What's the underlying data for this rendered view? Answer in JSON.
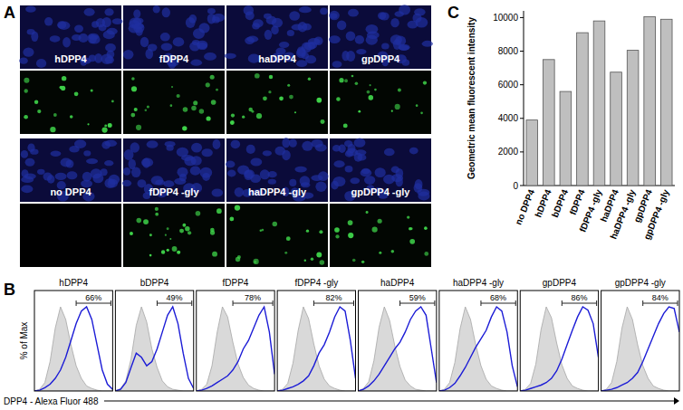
{
  "panel_a": {
    "letter": "A",
    "rows": [
      {
        "labels": [
          "hDPP4",
          "fDPP4",
          "haDPP4",
          "gpDPP4"
        ]
      },
      {
        "labels": [
          "no DPP4",
          "fDPP4 -gly",
          "haDPP4 -gly",
          "gpDPP4 -gly"
        ]
      }
    ]
  },
  "panel_b": {
    "letter": "B",
    "y_label": "% of Max",
    "x_label": "DPP4 - Alexa Fluor 488",
    "x": [
      0,
      1,
      2,
      3,
      4,
      5,
      6,
      7,
      8,
      9,
      10,
      11,
      12,
      13,
      14,
      15
    ],
    "xlim": [
      0,
      15
    ],
    "ylim": [
      0,
      100
    ],
    "histograms": [
      {
        "title": "hDPP4",
        "gate_start": 8,
        "gate_end": 15,
        "gate_percent": 66,
        "gate_label": "66%",
        "control": [
          0,
          2,
          10,
          35,
          75,
          100,
          85,
          55,
          30,
          15,
          6,
          3,
          1,
          0,
          0,
          0
        ],
        "blue": [
          0,
          1,
          4,
          8,
          15,
          25,
          40,
          60,
          80,
          95,
          100,
          85,
          55,
          25,
          8,
          2
        ]
      },
      {
        "title": "bDPP4",
        "gate_start": 8,
        "gate_end": 15,
        "gate_percent": 49,
        "gate_label": "49%",
        "control": [
          0,
          3,
          12,
          38,
          78,
          100,
          82,
          50,
          28,
          12,
          5,
          2,
          1,
          0,
          0,
          0
        ],
        "blue": [
          0,
          2,
          10,
          28,
          45,
          40,
          30,
          35,
          50,
          70,
          90,
          100,
          80,
          45,
          15,
          3
        ]
      },
      {
        "title": "fDPP4",
        "gate_start": 7,
        "gate_end": 15,
        "gate_percent": 78,
        "gate_label": "78%",
        "control": [
          0,
          2,
          8,
          30,
          70,
          100,
          88,
          58,
          32,
          16,
          7,
          3,
          1,
          0,
          0,
          0
        ],
        "blue": [
          0,
          1,
          3,
          6,
          10,
          14,
          18,
          25,
          35,
          50,
          60,
          75,
          90,
          100,
          70,
          20
        ]
      },
      {
        "title": "fDPP4 -gly",
        "gate_start": 7,
        "gate_end": 15,
        "gate_percent": 82,
        "gate_label": "82%",
        "control": [
          0,
          2,
          9,
          33,
          72,
          100,
          86,
          56,
          30,
          14,
          6,
          3,
          1,
          0,
          0,
          0
        ],
        "blue": [
          0,
          1,
          3,
          5,
          8,
          12,
          18,
          30,
          45,
          55,
          70,
          88,
          100,
          95,
          60,
          15
        ]
      },
      {
        "title": "haDPP4",
        "gate_start": 8,
        "gate_end": 15,
        "gate_percent": 59,
        "gate_label": "59%",
        "control": [
          0,
          3,
          11,
          36,
          76,
          100,
          84,
          54,
          29,
          13,
          6,
          2,
          1,
          0,
          0,
          0
        ],
        "blue": [
          0,
          2,
          6,
          12,
          20,
          30,
          40,
          50,
          58,
          70,
          85,
          95,
          100,
          90,
          50,
          10
        ]
      },
      {
        "title": "haDPP4 -gly",
        "gate_start": 8,
        "gate_end": 15,
        "gate_percent": 68,
        "gate_label": "68%",
        "control": [
          0,
          2,
          10,
          34,
          74,
          100,
          85,
          55,
          30,
          14,
          6,
          3,
          1,
          0,
          0,
          0
        ],
        "blue": [
          0,
          1,
          4,
          9,
          18,
          28,
          40,
          52,
          62,
          72,
          88,
          100,
          95,
          70,
          30,
          5
        ]
      },
      {
        "title": "gpDPP4",
        "gate_start": 8,
        "gate_end": 15,
        "gate_percent": 86,
        "gate_label": "86%",
        "control": [
          0,
          2,
          9,
          32,
          73,
          100,
          87,
          57,
          31,
          15,
          6,
          3,
          1,
          0,
          0,
          0
        ],
        "blue": [
          0,
          1,
          3,
          5,
          7,
          10,
          15,
          24,
          38,
          55,
          72,
          88,
          100,
          96,
          80,
          40
        ]
      },
      {
        "title": "gpDPP4 -gly",
        "gate_start": 8,
        "gate_end": 15,
        "gate_percent": 84,
        "gate_label": "84%",
        "control": [
          0,
          2,
          10,
          35,
          75,
          100,
          85,
          55,
          30,
          15,
          6,
          3,
          1,
          0,
          0,
          0
        ],
        "blue": [
          0,
          1,
          2,
          4,
          7,
          10,
          15,
          22,
          35,
          50,
          65,
          80,
          92,
          100,
          98,
          70
        ]
      }
    ]
  },
  "panel_c": {
    "letter": "C"
  },
  "chart_data": {
    "type": "bar",
    "y_label": "Geometric mean fluorescent intensity",
    "categories": [
      "no DPP4",
      "hDPP4",
      "bDPP4",
      "fDPP4",
      "fDPP4 -gly",
      "haDPP4",
      "haDPP4 -gly",
      "gpDPP4",
      "gpDPP4 -gly"
    ],
    "values": [
      3900,
      7500,
      5600,
      9100,
      9800,
      6750,
      8050,
      10050,
      9900
    ],
    "color": "#bfbfbf",
    "ylim": [
      0,
      10400
    ],
    "yticks": [
      0,
      2000,
      4000,
      6000,
      8000,
      10000
    ],
    "grid": false
  }
}
